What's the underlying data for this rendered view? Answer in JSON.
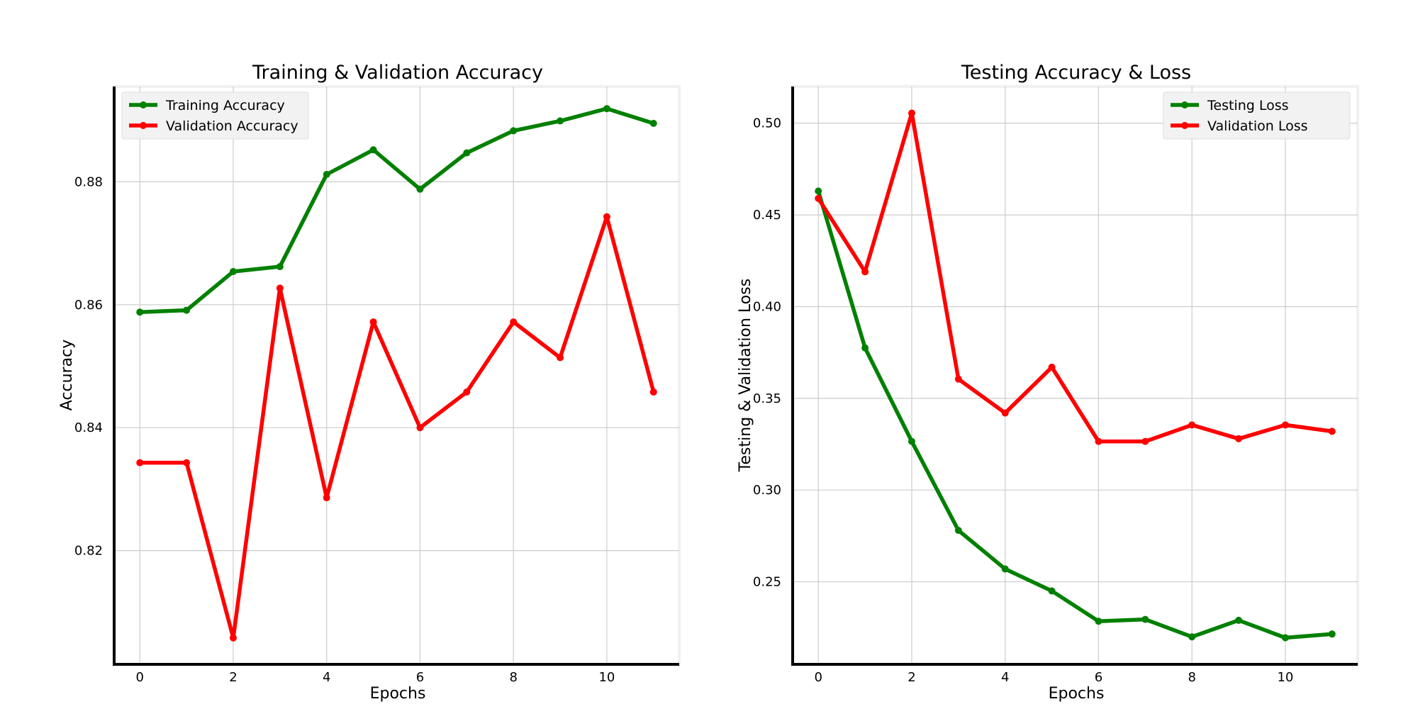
{
  "chart_data": [
    {
      "type": "line",
      "title": "Training & Validation Accuracy",
      "xlabel": "Epochs",
      "ylabel": "Accuracy",
      "xlim": [
        -0.55,
        11.55
      ],
      "ylim": [
        0.8015,
        0.8955
      ],
      "xticks": [
        0,
        2,
        4,
        6,
        8,
        10
      ],
      "yticks": [
        0.82,
        0.84,
        0.86,
        0.88
      ],
      "ytick_labels": [
        "0.82",
        "0.84",
        "0.86",
        "0.88"
      ],
      "grid": true,
      "legend": "upper left",
      "x": [
        0,
        1,
        2,
        3,
        4,
        5,
        6,
        7,
        8,
        9,
        10,
        11
      ],
      "series": [
        {
          "name": "Training Accuracy",
          "color": "#008000",
          "values": [
            0.8588,
            0.8591,
            0.8654,
            0.8662,
            0.8812,
            0.8852,
            0.8788,
            0.8847,
            0.8883,
            0.8899,
            0.8919,
            0.8895
          ]
        },
        {
          "name": "Validation Accuracy",
          "color": "#ff0000",
          "values": [
            0.8343,
            0.8343,
            0.8058,
            0.8627,
            0.8286,
            0.8572,
            0.84,
            0.8458,
            0.8572,
            0.8514,
            0.8743,
            0.8458
          ]
        }
      ]
    },
    {
      "type": "line",
      "title": "Testing Accuracy & Loss",
      "xlabel": "Epochs",
      "ylabel": "Testing & Validation Loss",
      "xlim": [
        -0.55,
        11.55
      ],
      "ylim": [
        0.205,
        0.52
      ],
      "xticks": [
        0,
        2,
        4,
        6,
        8,
        10
      ],
      "yticks": [
        0.25,
        0.3,
        0.35,
        0.4,
        0.45,
        0.5
      ],
      "ytick_labels": [
        "0.25",
        "0.30",
        "0.35",
        "0.40",
        "0.45",
        "0.50"
      ],
      "grid": true,
      "legend": "upper right",
      "x": [
        0,
        1,
        2,
        3,
        4,
        5,
        6,
        7,
        8,
        9,
        10,
        11
      ],
      "series": [
        {
          "name": "Testing Loss",
          "color": "#008000",
          "values": [
            0.463,
            0.3775,
            0.3265,
            0.278,
            0.257,
            0.245,
            0.2285,
            0.2295,
            0.22,
            0.229,
            0.2195,
            0.2215
          ]
        },
        {
          "name": "Validation Loss",
          "color": "#ff0000",
          "values": [
            0.459,
            0.419,
            0.5055,
            0.3605,
            0.342,
            0.367,
            0.3265,
            0.3265,
            0.3355,
            0.328,
            0.3355,
            0.332
          ]
        }
      ]
    }
  ]
}
